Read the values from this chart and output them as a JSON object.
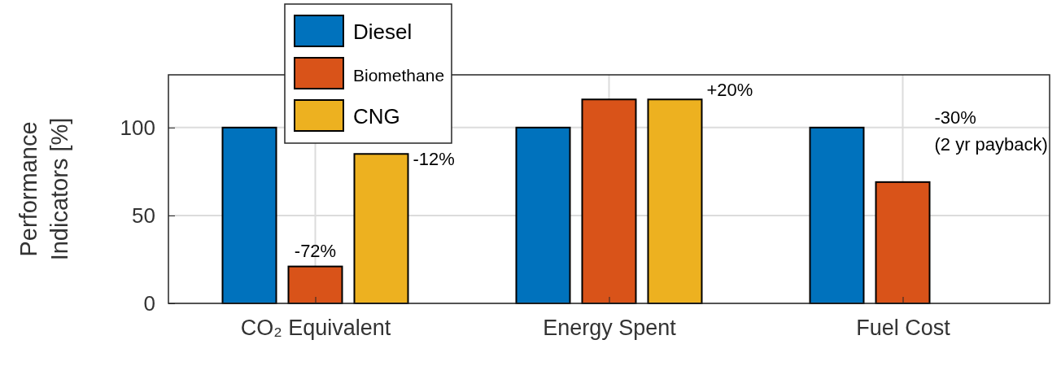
{
  "chart_data": {
    "type": "bar",
    "ylabel": "Performance Indicators [%]",
    "categories": [
      "CO₂ Equivalent",
      "Energy Spent",
      "Fuel Cost"
    ],
    "series": [
      {
        "name": "Diesel",
        "color": "#0072bd",
        "values": [
          100,
          100,
          100
        ]
      },
      {
        "name": "Biomethane",
        "color": "#d95319",
        "values": [
          21,
          116,
          69
        ]
      },
      {
        "name": "CNG",
        "color": "#edb120",
        "values": [
          85,
          116,
          null
        ]
      }
    ],
    "ylim": [
      0,
      130
    ],
    "yticks": [
      0,
      50,
      100
    ],
    "grid": true,
    "legend": "top left",
    "annotations": [
      "-72%",
      "-12%",
      "+20%",
      "-30% (2 yr payback)"
    ]
  }
}
